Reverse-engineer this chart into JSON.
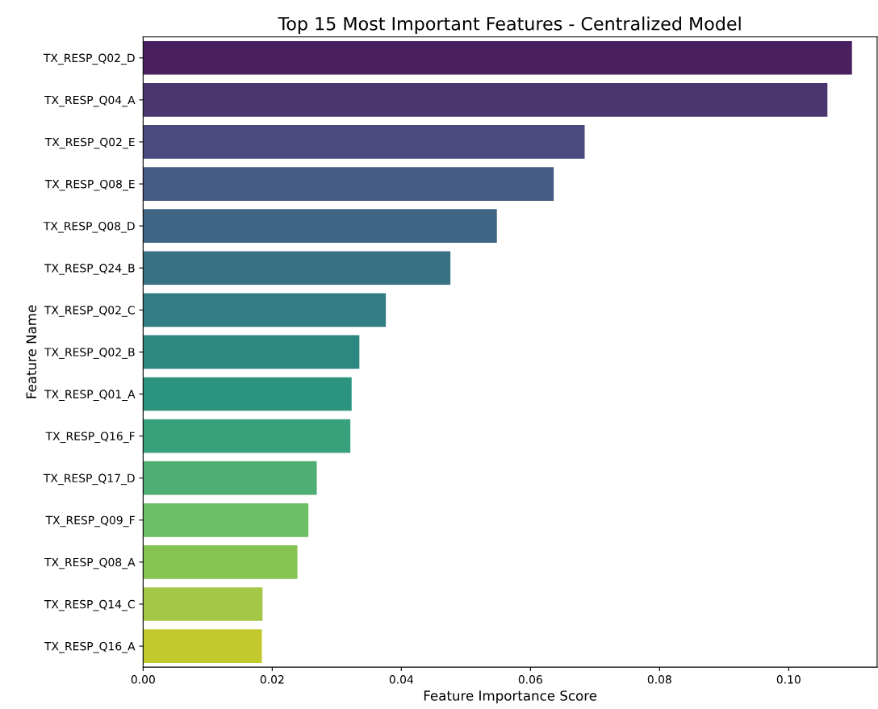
{
  "chart_data": {
    "type": "bar",
    "orientation": "horizontal",
    "title": "Top 15 Most Important Features - Centralized Model",
    "xlabel": "Feature Importance Score",
    "ylabel": "Feature Name",
    "categories": [
      "TX_RESP_Q02_D",
      "TX_RESP_Q04_A",
      "TX_RESP_Q02_E",
      "TX_RESP_Q08_E",
      "TX_RESP_Q08_D",
      "TX_RESP_Q24_B",
      "TX_RESP_Q02_C",
      "TX_RESP_Q02_B",
      "TX_RESP_Q01_A",
      "TX_RESP_Q16_F",
      "TX_RESP_Q17_D",
      "TX_RESP_Q09_F",
      "TX_RESP_Q08_A",
      "TX_RESP_Q14_C",
      "TX_RESP_Q16_A"
    ],
    "values": [
      0.1098,
      0.106,
      0.0684,
      0.0636,
      0.0548,
      0.0476,
      0.0376,
      0.0335,
      0.0323,
      0.0321,
      0.0269,
      0.0256,
      0.0239,
      0.0185,
      0.0184
    ],
    "colors": [
      "#4a1f5f",
      "#4b3670",
      "#4a4a7e",
      "#445b83",
      "#3e6684",
      "#387283",
      "#317d83",
      "#2e8882",
      "#2c937f",
      "#39a07c",
      "#4fae73",
      "#6ebd67",
      "#86c451",
      "#a4c747",
      "#c2c92c"
    ],
    "xlim": [
      0,
      0.1137
    ],
    "xticks": [
      {
        "value": 0,
        "label": "0.00"
      },
      {
        "value": 0.02,
        "label": "0.02"
      },
      {
        "value": 0.04,
        "label": "0.04"
      },
      {
        "value": 0.06,
        "label": "0.06"
      },
      {
        "value": 0.08,
        "label": "0.08"
      },
      {
        "value": 0.1,
        "label": "0.10"
      }
    ],
    "grid": false
  }
}
